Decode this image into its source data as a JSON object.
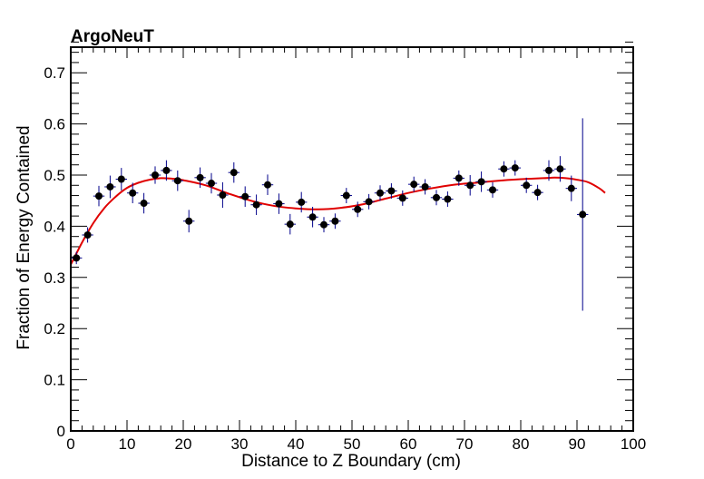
{
  "chart_data": {
    "type": "scatter",
    "title": "ArgoNeuT",
    "xlabel": "Distance to Z Boundary (cm)",
    "ylabel": "Fraction of Energy Contained",
    "xlim": [
      0,
      100
    ],
    "ylim": [
      0,
      0.75
    ],
    "x_ticks": [
      0,
      10,
      20,
      30,
      40,
      50,
      60,
      70,
      80,
      90,
      100
    ],
    "x_tick_labels": [
      "0",
      "10",
      "20",
      "30",
      "40",
      "50",
      "60",
      "70",
      "80",
      "90",
      "100"
    ],
    "y_ticks": [
      0,
      0.1,
      0.2,
      0.3,
      0.4,
      0.5,
      0.6,
      0.7
    ],
    "y_tick_labels": [
      "0",
      "0.1",
      "0.2",
      "0.3",
      "0.4",
      "0.5",
      "0.6",
      "0.7"
    ],
    "series": [
      {
        "name": "Data",
        "x": [
          1,
          3,
          5,
          7,
          9,
          11,
          13,
          15,
          17,
          19,
          21,
          23,
          25,
          27,
          29,
          31,
          33,
          35,
          37,
          39,
          41,
          43,
          45,
          47,
          49,
          51,
          53,
          55,
          57,
          59,
          61,
          63,
          65,
          67,
          69,
          71,
          73,
          75,
          77,
          79,
          81,
          83,
          85,
          87,
          89,
          91
        ],
        "y": [
          0.338,
          0.383,
          0.459,
          0.477,
          0.492,
          0.465,
          0.445,
          0.5,
          0.509,
          0.489,
          0.41,
          0.495,
          0.484,
          0.461,
          0.505,
          0.458,
          0.442,
          0.481,
          0.444,
          0.404,
          0.447,
          0.418,
          0.403,
          0.41,
          0.46,
          0.433,
          0.448,
          0.465,
          0.469,
          0.455,
          0.482,
          0.477,
          0.456,
          0.453,
          0.494,
          0.48,
          0.487,
          0.471,
          0.512,
          0.514,
          0.48,
          0.466,
          0.509,
          0.512,
          0.474,
          0.423
        ],
        "y_err": [
          0.012,
          0.015,
          0.02,
          0.022,
          0.022,
          0.02,
          0.02,
          0.017,
          0.02,
          0.02,
          0.022,
          0.02,
          0.02,
          0.025,
          0.02,
          0.02,
          0.02,
          0.02,
          0.02,
          0.02,
          0.02,
          0.02,
          0.015,
          0.015,
          0.015,
          0.015,
          0.015,
          0.015,
          0.015,
          0.015,
          0.015,
          0.015,
          0.015,
          0.015,
          0.015,
          0.02,
          0.02,
          0.015,
          0.015,
          0.015,
          0.015,
          0.015,
          0.02,
          0.025,
          0.025,
          0.188
        ],
        "x_err": 1,
        "color": "#000000",
        "error_color": "#00008b"
      },
      {
        "name": "Fit",
        "type": "line",
        "x": [
          0,
          2,
          4,
          6,
          8,
          10,
          12,
          14,
          16,
          18,
          20,
          24,
          28,
          32,
          36,
          40,
          44,
          48,
          52,
          56,
          60,
          64,
          68,
          72,
          76,
          80,
          84,
          86,
          88,
          90,
          92,
          94,
          95
        ],
        "y": [
          0.325,
          0.368,
          0.406,
          0.436,
          0.458,
          0.475,
          0.485,
          0.491,
          0.494,
          0.493,
          0.49,
          0.48,
          0.464,
          0.45,
          0.44,
          0.435,
          0.433,
          0.436,
          0.443,
          0.454,
          0.465,
          0.474,
          0.481,
          0.485,
          0.489,
          0.492,
          0.494,
          0.495,
          0.494,
          0.491,
          0.486,
          0.474,
          0.465
        ],
        "color": "#e00000"
      }
    ]
  }
}
